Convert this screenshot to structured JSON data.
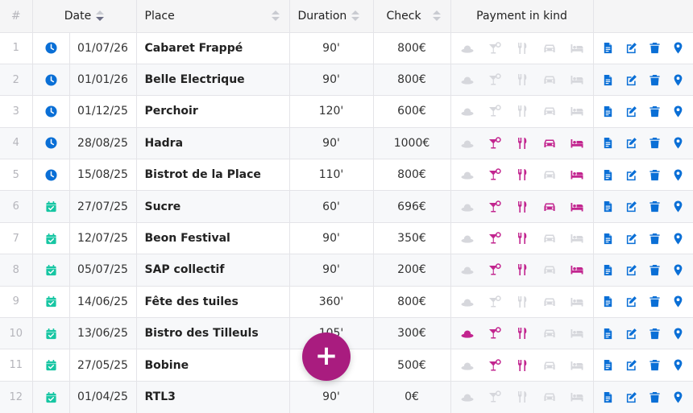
{
  "header": {
    "idx": "#",
    "date": "Date",
    "place": "Place",
    "duration": "Duration",
    "check": "Check",
    "payment": "Payment in kind"
  },
  "colors": {
    "accent": "#c2258f",
    "fab": "#a91c7f",
    "action": "#0a6fd6",
    "pending": "#0a6fd6",
    "done": "#17c6a3",
    "inactive": "#d6d7dc"
  },
  "payment_icons": [
    "hat-icon",
    "cocktail-icon",
    "utensils-icon",
    "car-icon",
    "bed-icon"
  ],
  "action_icons": [
    "contract-icon",
    "edit-icon",
    "trash-icon",
    "map-marker-icon"
  ],
  "fab_label": "+",
  "rows": [
    {
      "idx": "1",
      "status": "clock",
      "date": "01/07/26",
      "place": "Cabaret Frappé",
      "duration": "90'",
      "check": "800€",
      "pay": [
        0,
        0,
        0,
        0,
        0
      ]
    },
    {
      "idx": "2",
      "status": "clock",
      "date": "01/01/26",
      "place": "Belle Electrique",
      "duration": "90'",
      "check": "800€",
      "pay": [
        0,
        0,
        0,
        0,
        0
      ]
    },
    {
      "idx": "3",
      "status": "clock",
      "date": "01/12/25",
      "place": "Perchoir",
      "duration": "120'",
      "check": "600€",
      "pay": [
        0,
        0,
        0,
        0,
        0
      ]
    },
    {
      "idx": "4",
      "status": "clock",
      "date": "28/08/25",
      "place": "Hadra",
      "duration": "90'",
      "check": "1000€",
      "pay": [
        0,
        1,
        1,
        1,
        1
      ]
    },
    {
      "idx": "5",
      "status": "clock",
      "date": "15/08/25",
      "place": "Bistrot de la Place",
      "duration": "110'",
      "check": "800€",
      "pay": [
        0,
        1,
        1,
        0,
        1
      ]
    },
    {
      "idx": "6",
      "status": "calendar",
      "date": "27/07/25",
      "place": "Sucre",
      "duration": "60'",
      "check": "696€",
      "pay": [
        0,
        1,
        1,
        1,
        1
      ]
    },
    {
      "idx": "7",
      "status": "calendar",
      "date": "12/07/25",
      "place": "Beon Festival",
      "duration": "90'",
      "check": "350€",
      "pay": [
        0,
        1,
        1,
        0,
        0
      ]
    },
    {
      "idx": "8",
      "status": "calendar",
      "date": "05/07/25",
      "place": "SAP collectif",
      "duration": "90'",
      "check": "200€",
      "pay": [
        0,
        1,
        1,
        0,
        1
      ]
    },
    {
      "idx": "9",
      "status": "calendar",
      "date": "14/06/25",
      "place": "Fête des tuiles",
      "duration": "360'",
      "check": "800€",
      "pay": [
        0,
        0,
        0,
        0,
        0
      ]
    },
    {
      "idx": "10",
      "status": "calendar",
      "date": "13/06/25",
      "place": "Bistro des Tilleuls",
      "duration": "105'",
      "check": "300€",
      "pay": [
        1,
        1,
        1,
        0,
        0
      ]
    },
    {
      "idx": "11",
      "status": "calendar",
      "date": "27/05/25",
      "place": "Bobine",
      "duration": "",
      "check": "500€",
      "pay": [
        0,
        1,
        1,
        0,
        0
      ]
    },
    {
      "idx": "12",
      "status": "calendar",
      "date": "01/04/25",
      "place": "RTL3",
      "duration": "90'",
      "check": "0€",
      "pay": [
        0,
        0,
        0,
        0,
        0
      ]
    }
  ]
}
